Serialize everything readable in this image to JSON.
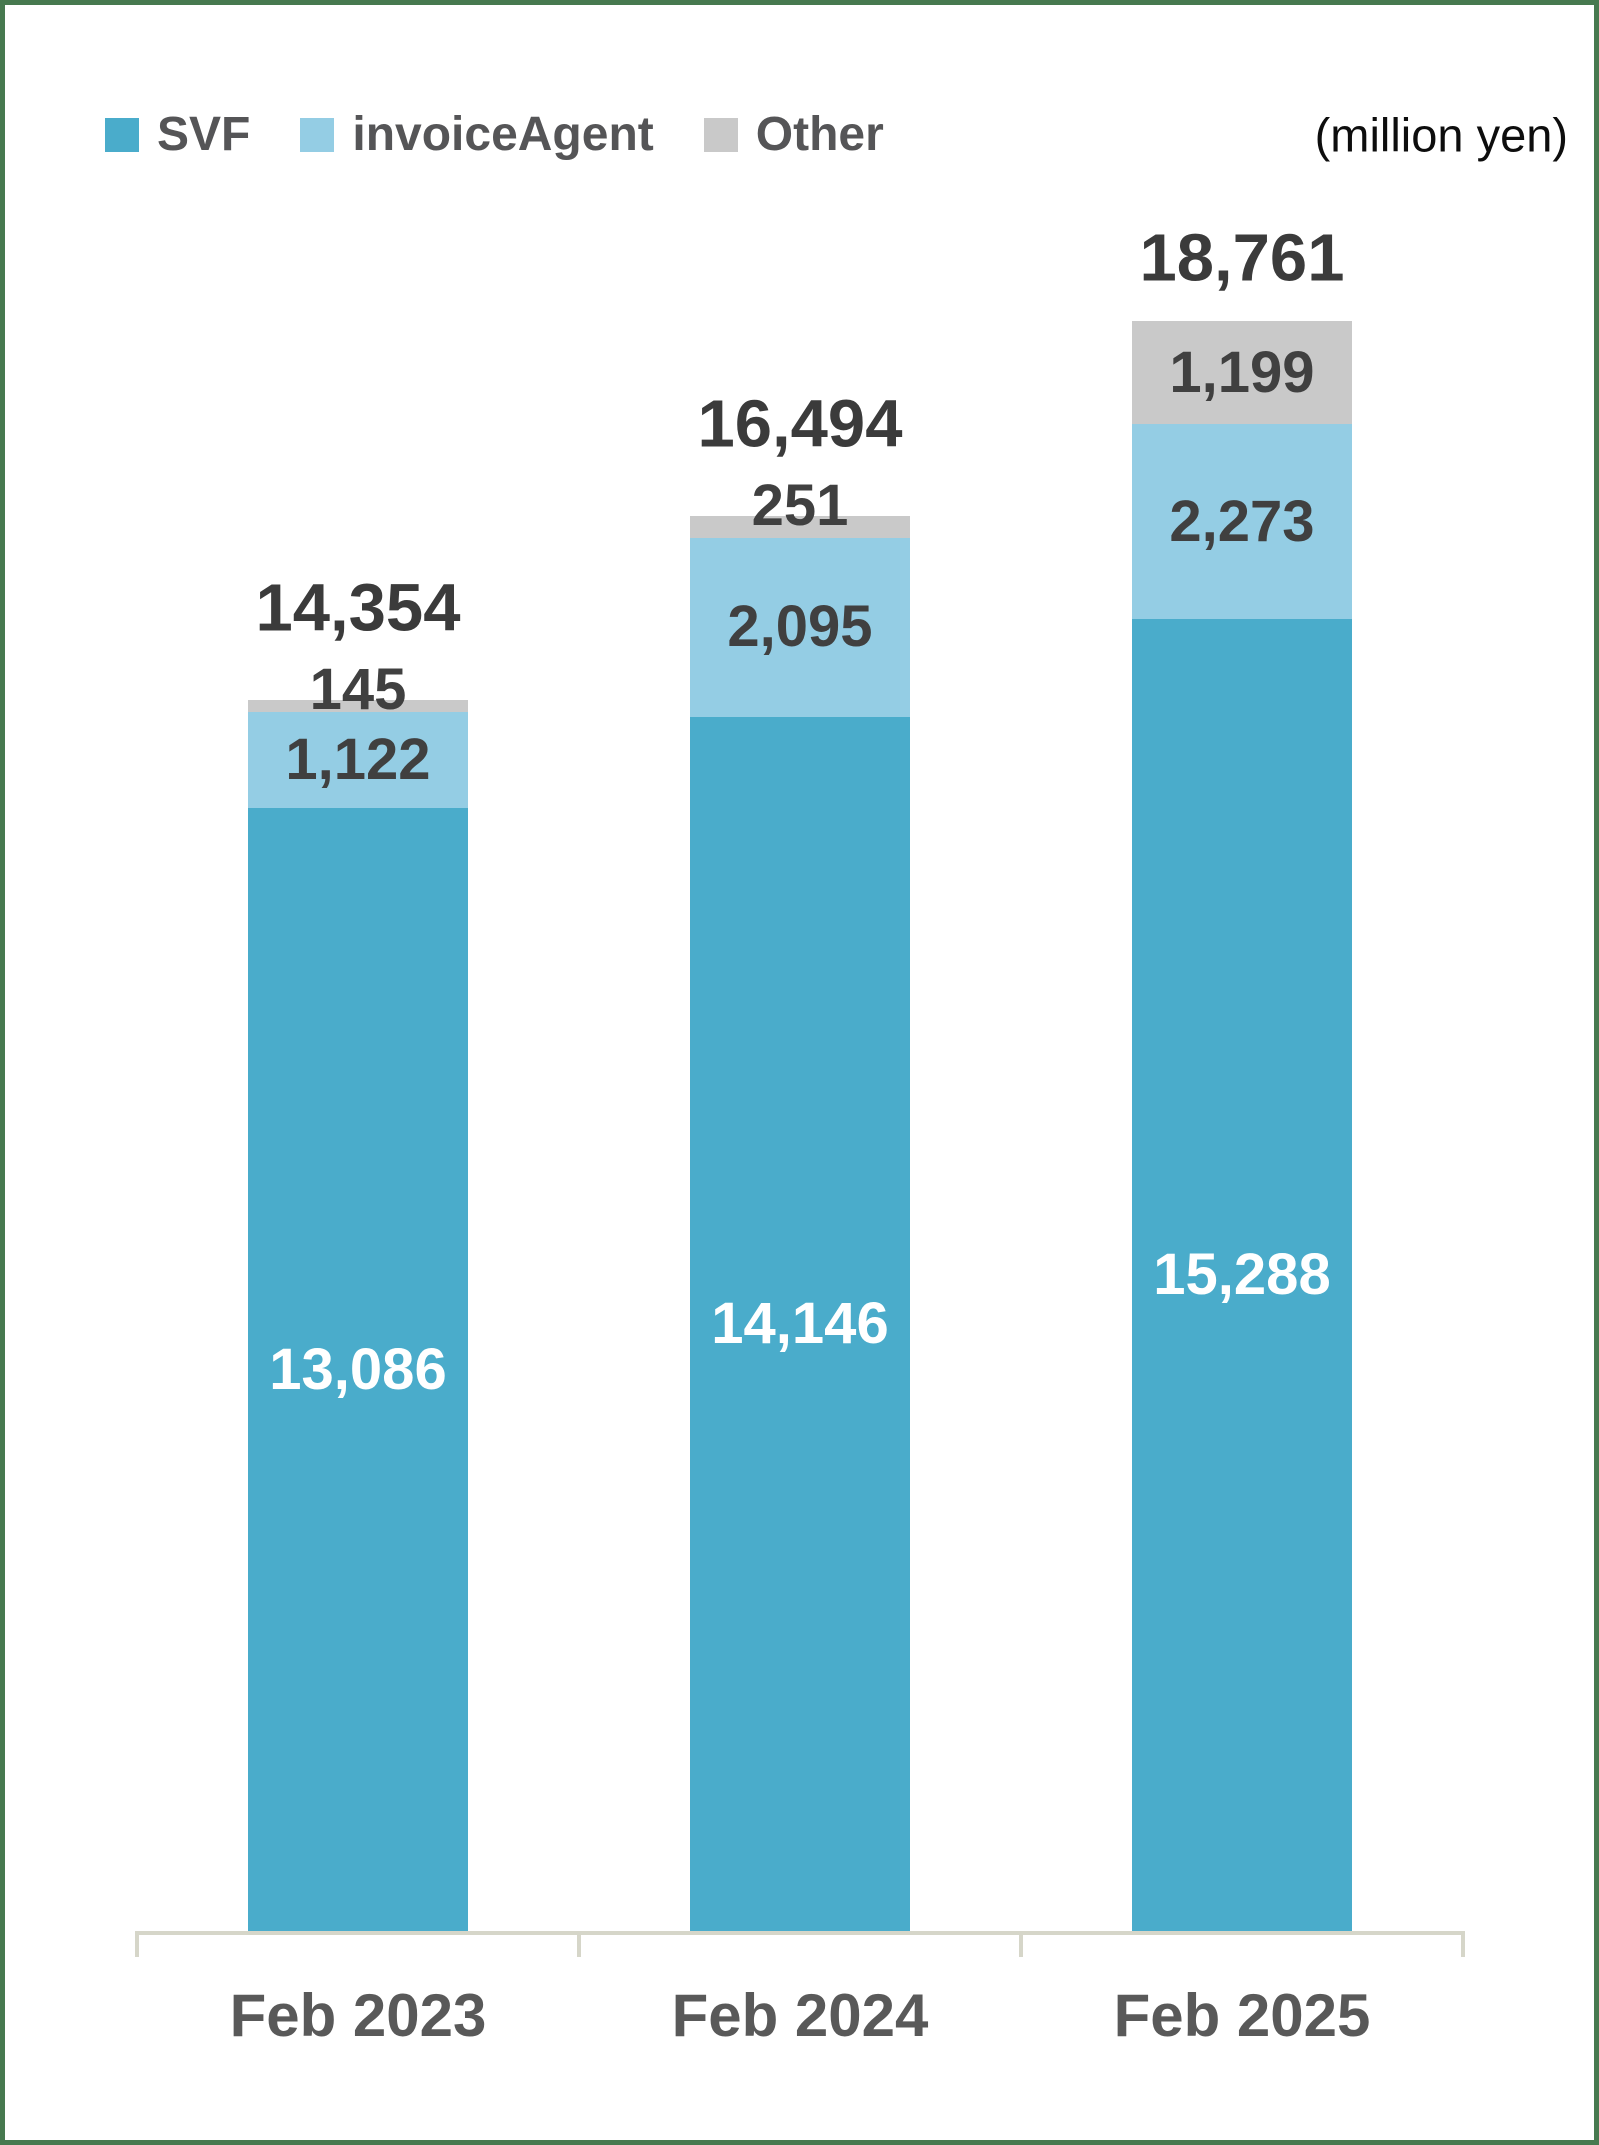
{
  "unit_label": "(million yen)",
  "legend": {
    "items": [
      {
        "label": "SVF",
        "color": "#4AACCB"
      },
      {
        "label": "invoiceAgent",
        "color": "#94CDE4"
      },
      {
        "label": "Other",
        "color": "#C9C9C9"
      }
    ]
  },
  "colors": {
    "background": "#FFFFFF",
    "frame_border": "#47794F",
    "axis": "#D6D6C9",
    "value_label_dark": "#404040",
    "total_label": "#3B3B3B",
    "category_label": "#595959",
    "legend_label": "#555557",
    "unit_label_text": "#0D0D0D",
    "svf_bar": "#4AACCB",
    "invoiceagent_bar": "#94CDE4",
    "other_bar": "#C9C9C9"
  },
  "chart_data": {
    "type": "bar",
    "stacked": true,
    "title": "",
    "unit": "million yen",
    "categories": [
      "Feb 2023",
      "Feb 2024",
      "Feb 2025"
    ],
    "series": [
      {
        "name": "SVF",
        "color": "#4AACCB",
        "label_color": "#FFFFFF",
        "values": [
          13086,
          14146,
          15288
        ]
      },
      {
        "name": "invoiceAgent",
        "color": "#94CDE4",
        "label_color": "#404040",
        "values": [
          1122,
          2095,
          2273
        ]
      },
      {
        "name": "Other",
        "color": "#C9C9C9",
        "label_color": "#404040",
        "values": [
          145,
          251,
          1199
        ]
      }
    ],
    "totals": [
      14354,
      16494,
      18761
    ],
    "xlabel": "",
    "ylabel": "",
    "grid": false,
    "legend_position": "top-left"
  }
}
